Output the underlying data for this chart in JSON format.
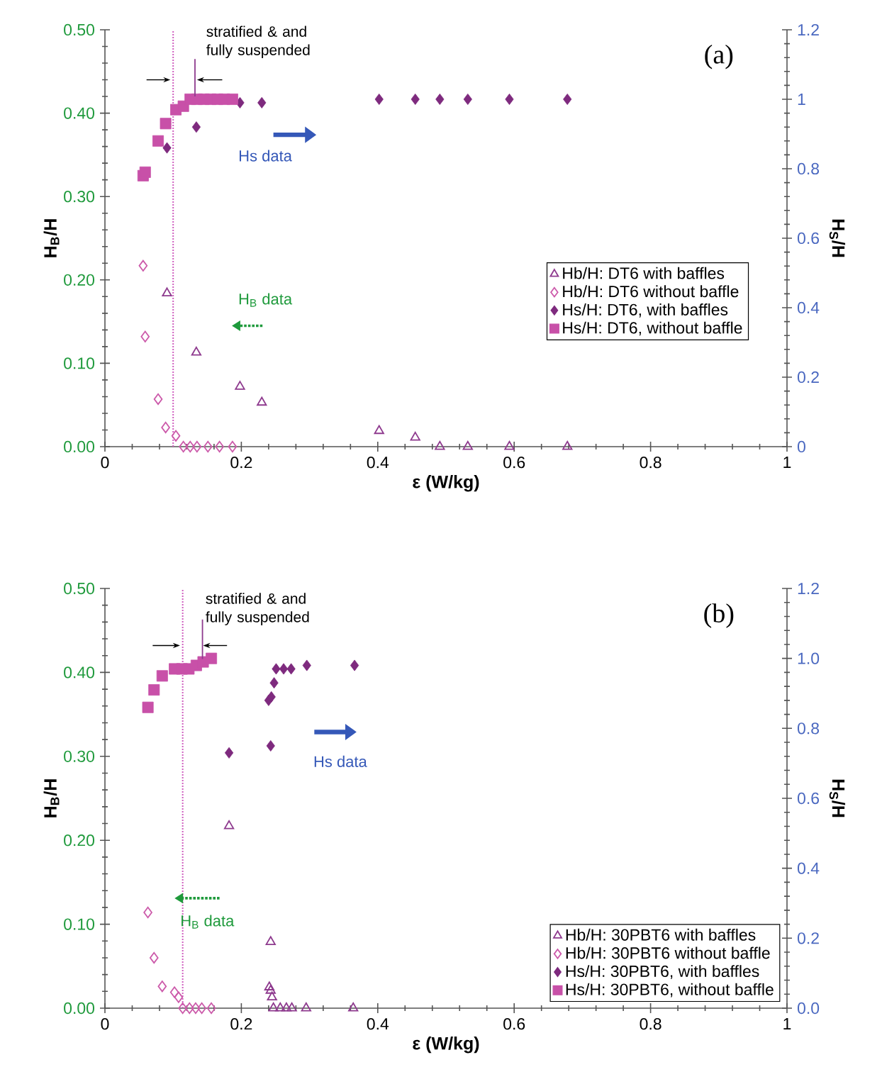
{
  "chart_data": [
    {
      "type": "scatter",
      "title": "(a)",
      "xlabel": "ε (W/kg)",
      "ylabel": "H$_{B}$/H",
      "y2label": "H$_{S}$/H",
      "xlim": [
        0,
        1
      ],
      "xticks": [
        0,
        0.2,
        0.4,
        0.6,
        0.8,
        1
      ],
      "ylim": [
        0,
        0.5
      ],
      "yticks": [
        {
          "value": 0,
          "label": "0.00"
        },
        {
          "value": 0.1,
          "label": "0.10"
        },
        {
          "value": 0.2,
          "label": "0.20"
        },
        {
          "value": 0.3,
          "label": "0.30"
        },
        {
          "value": 0.4,
          "label": "0.40"
        },
        {
          "value": 0.5,
          "label": "0.50"
        }
      ],
      "y2lim": [
        0,
        1.2
      ],
      "y2ticks": [
        0,
        0.2,
        0.4,
        0.6,
        0.8,
        1,
        1.2
      ],
      "legend": "right",
      "series": [
        {
          "name": "Hb/H: DT6 with baffles",
          "color": "#8e3a8e",
          "marker": "triangle",
          "x": [
            0.091,
            0.134,
            0.198,
            0.23,
            0.402,
            0.455,
            0.491,
            0.532,
            0.593,
            0.678
          ],
          "values": [
            0.184,
            0.113,
            0.072,
            0.053,
            0.019,
            0.011,
            0,
            0,
            0,
            0
          ]
        },
        {
          "name": "Hb/H: DT6 without baffle",
          "color": "#cc5aaa",
          "marker": "diamond",
          "x": [
            0.056,
            0.059,
            0.078,
            0.089,
            0.104,
            0.115,
            0.125,
            0.135,
            0.151,
            0.168,
            0.187
          ],
          "values": [
            0.217,
            0.132,
            0.057,
            0.023,
            0.013,
            0,
            0,
            0,
            0,
            0,
            0
          ]
        },
        {
          "name": "Hs/H: DT6, with baffles",
          "color": "#7e2a7e",
          "marker": "diamond",
          "axis": "y2",
          "x": [
            0.091,
            0.134,
            0.198,
            0.23,
            0.402,
            0.455,
            0.491,
            0.532,
            0.593,
            0.678
          ],
          "values": [
            0.86,
            0.92,
            0.99,
            0.99,
            1,
            1,
            1,
            1,
            1,
            1
          ]
        },
        {
          "name": "Hs/H: DT6, without baffle",
          "color": "#c850a8",
          "marker": "square",
          "axis": "y2",
          "x": [
            0.056,
            0.059,
            0.078,
            0.089,
            0.104,
            0.115,
            0.125,
            0.135,
            0.145,
            0.155,
            0.165,
            0.175,
            0.187
          ],
          "values": [
            0.78,
            0.79,
            0.88,
            0.93,
            0.97,
            0.98,
            1,
            1,
            1,
            1,
            1,
            1,
            1
          ]
        }
      ],
      "ref_lines": [
        {
          "axis": "x",
          "value": 0.1,
          "color": "#d060c0",
          "line_style": "dotted"
        }
      ],
      "annotations": [
        {
          "text": "stratified & and fully suspended",
          "x": 0.1,
          "y": 0.44
        },
        "Hs data",
        "H$_{B}$ data"
      ]
    },
    {
      "type": "scatter",
      "title": "(b)",
      "xlabel": "ε (W/kg)",
      "ylabel": "H$_{B}$/H",
      "y2label": "H$_{S}$/H",
      "xlim": [
        0,
        1
      ],
      "xticks": [
        0,
        0.2,
        0.4,
        0.6,
        0.8,
        1
      ],
      "ylim": [
        0,
        0.5
      ],
      "yticks": [
        {
          "value": 0,
          "label": "0.00"
        },
        {
          "value": 0.1,
          "label": "0.10"
        },
        {
          "value": 0.2,
          "label": "0.20"
        },
        {
          "value": 0.3,
          "label": "0.30"
        },
        {
          "value": 0.4,
          "label": "0.40"
        },
        {
          "value": 0.5,
          "label": "0.50"
        }
      ],
      "y2lim": [
        0,
        1.2
      ],
      "y2ticks": [
        {
          "value": 0,
          "label": "0.0"
        },
        0.2,
        0.4,
        0.6,
        0.8,
        {
          "value": 1,
          "label": "1.0"
        },
        1.2
      ],
      "legend": "bottom right",
      "series": [
        {
          "name": "Hb/H: 30PBT6 with baffles",
          "color": "#8e3a8e",
          "marker": "triangle",
          "x": [
            0.182,
            0.243,
            0.241,
            0.243,
            0.245,
            0.247,
            0.257,
            0.266,
            0.274,
            0.295,
            0.364
          ],
          "values": [
            0.217,
            0.079,
            0.025,
            0.021,
            0.013,
            0,
            0,
            0,
            0,
            0,
            0
          ]
        },
        {
          "name": "Hb/H: 30PBT6 without baffle",
          "color": "#cc5aaa",
          "marker": "diamond",
          "x": [
            0.063,
            0.072,
            0.084,
            0.102,
            0.108,
            0.114,
            0.124,
            0.133,
            0.142,
            0.156
          ],
          "values": [
            0.114,
            0.06,
            0.026,
            0.019,
            0.013,
            0,
            0,
            0,
            0,
            0
          ]
        },
        {
          "name": "Hs/H: 30PBT6, with baffles",
          "color": "#7e2a7e",
          "marker": "diamond",
          "axis": "y2",
          "x": [
            0.182,
            0.243,
            0.24,
            0.244,
            0.248,
            0.251,
            0.262,
            0.273,
            0.296,
            0.366
          ],
          "values": [
            0.73,
            0.75,
            0.88,
            0.89,
            0.93,
            0.97,
            0.97,
            0.97,
            0.98,
            0.98
          ]
        },
        {
          "name": "Hs/H: 30PBT6, without baffle",
          "color": "#c850a8",
          "marker": "square",
          "axis": "y2",
          "x": [
            0.063,
            0.072,
            0.084,
            0.102,
            0.113,
            0.123,
            0.134,
            0.144,
            0.156
          ],
          "values": [
            0.86,
            0.91,
            0.95,
            0.97,
            0.97,
            0.97,
            0.98,
            0.99,
            1.0
          ]
        }
      ],
      "ref_lines": [
        {
          "axis": "x",
          "value": 0.114,
          "color": "#d060c0",
          "line_style": "dotted"
        }
      ],
      "annotations": [
        {
          "text": "stratified & and fully suspended",
          "x": 0.114,
          "y": 0.432
        },
        "Hs data",
        "H$_{B}$ data"
      ]
    }
  ]
}
